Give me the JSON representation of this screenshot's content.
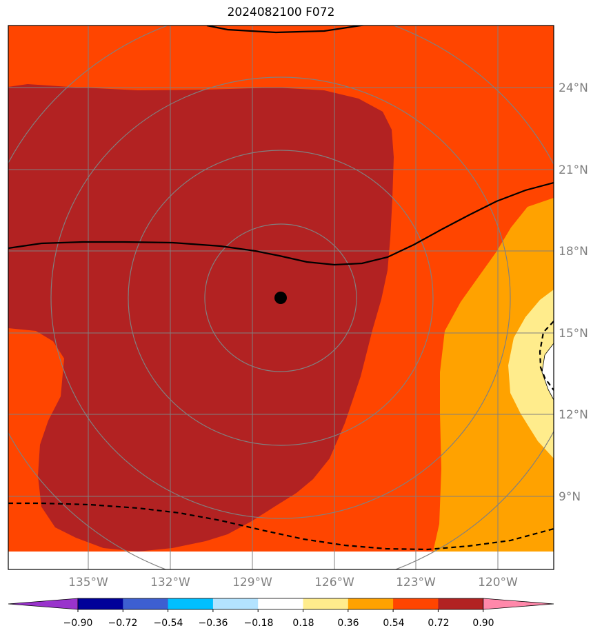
{
  "title": "2024082100 F072",
  "map": {
    "latitude_labels": [
      "24°N",
      "21°N",
      "18°N",
      "15°N",
      "12°N",
      "9°N"
    ],
    "longitude_labels": [
      "135°W",
      "132°W",
      "129°W",
      "126°W",
      "123°W",
      "120°W"
    ],
    "center_marker": {
      "lon": -128,
      "lat": 16.3
    }
  },
  "colorbar": {
    "ticks": [
      "−0.90",
      "−0.72",
      "−0.54",
      "−0.36",
      "−0.18",
      "0.18",
      "0.36",
      "0.54",
      "0.72",
      "0.90"
    ],
    "colors": [
      "#9933cc",
      "#000099",
      "#3d5fd1",
      "#00bfff",
      "#b3e3ff",
      "#ffffff",
      "#ffec8c",
      "#ffa200",
      "#ff4500",
      "#b22222",
      "#ff88aa"
    ]
  }
}
